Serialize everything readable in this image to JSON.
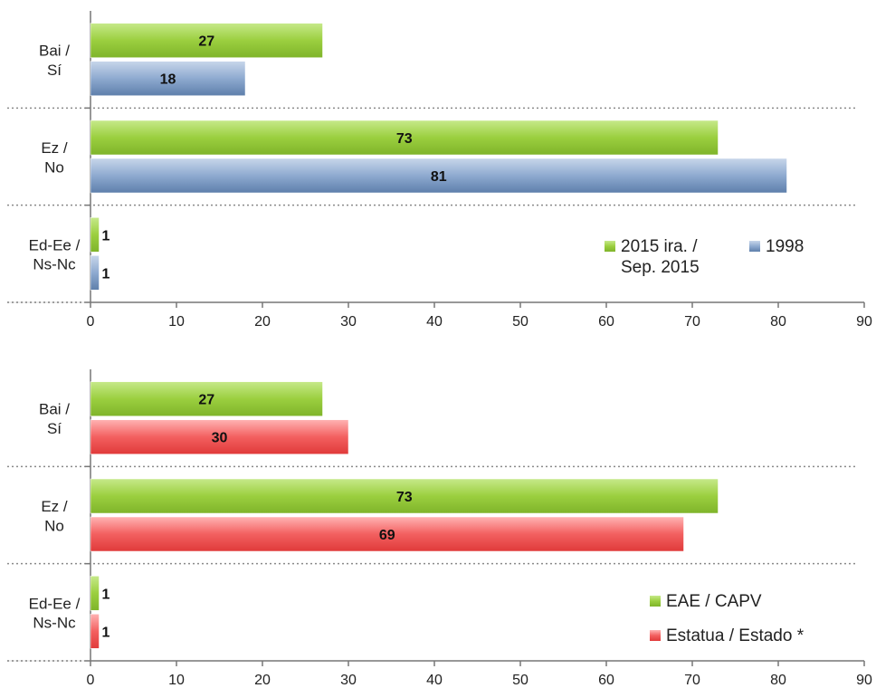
{
  "chart_data": [
    {
      "type": "bar",
      "orientation": "horizontal",
      "categories": [
        "Bai / Sí",
        "Ez / No",
        "Ed-Ee / Ns-Nc"
      ],
      "category_lines": [
        [
          "Bai /",
          "Sí"
        ],
        [
          "Ez /",
          "No"
        ],
        [
          "Ed-Ee /",
          "Ns-Nc"
        ]
      ],
      "series": [
        {
          "name": "2015 ira. / Sep. 2015",
          "name_lines": [
            "2015 ira. /",
            "Sep. 2015"
          ],
          "values": [
            27,
            73,
            1
          ],
          "color": "#9bcf3f"
        },
        {
          "name": "1998",
          "name_lines": [
            "1998"
          ],
          "values": [
            18,
            81,
            1
          ],
          "color": "#7f9cc0"
        }
      ],
      "xlim": [
        0,
        90
      ],
      "xticks": [
        0,
        10,
        20,
        30,
        40,
        50,
        60,
        70,
        80,
        90
      ],
      "grid": false,
      "legend": "bottom-right, horizontal"
    },
    {
      "type": "bar",
      "orientation": "horizontal",
      "categories": [
        "Bai / Sí",
        "Ez / No",
        "Ed-Ee / Ns-Nc"
      ],
      "category_lines": [
        [
          "Bai /",
          "Sí"
        ],
        [
          "Ez /",
          "No"
        ],
        [
          "Ed-Ee /",
          "Ns-Nc"
        ]
      ],
      "series": [
        {
          "name": "EAE / CAPV",
          "name_lines": [
            "EAE / CAPV"
          ],
          "values": [
            27,
            73,
            1
          ],
          "color": "#9bcf3f"
        },
        {
          "name": "Estatua / Estado *",
          "name_lines": [
            "Estatua / Estado *"
          ],
          "values": [
            30,
            69,
            1
          ],
          "color": "#f05a5a"
        }
      ],
      "xlim": [
        0,
        90
      ],
      "xticks": [
        0,
        10,
        20,
        30,
        40,
        50,
        60,
        70,
        80,
        90
      ],
      "grid": false,
      "legend": "bottom-right, vertical"
    }
  ]
}
